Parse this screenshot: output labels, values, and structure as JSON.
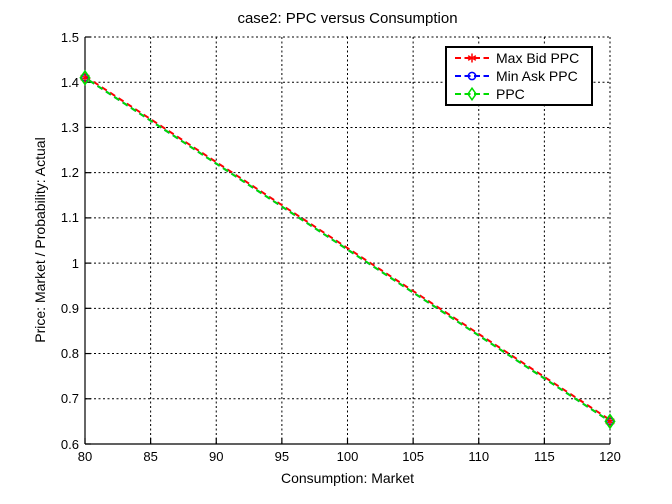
{
  "figure": {
    "background": "#ffffff"
  },
  "chart_data": {
    "type": "line",
    "title": "case2: PPC versus Consumption",
    "xlabel": "Consumption: Market",
    "ylabel": "Price: Market / Probability: Actual",
    "xlim": [
      80,
      120
    ],
    "ylim": [
      0.6,
      1.5
    ],
    "xticks": [
      80,
      85,
      90,
      95,
      100,
      105,
      110,
      115,
      120
    ],
    "xtick_labels": [
      "80",
      "85",
      "90",
      "95",
      "100",
      "105",
      "110",
      "115",
      "120"
    ],
    "yticks": [
      0.6,
      0.7,
      0.8,
      0.9,
      1.0,
      1.1,
      1.2,
      1.3,
      1.4,
      1.5
    ],
    "ytick_labels": [
      "0.6",
      "0.7",
      "0.8",
      "0.9",
      "1",
      "1.1",
      "1.2",
      "1.3",
      "1.4",
      "1.5"
    ],
    "grid": true,
    "grid_style": "dotted",
    "grid_color": "#000000",
    "axis_color": "#000000",
    "legend_position": "top-right",
    "x": [
      80,
      120
    ],
    "series": [
      {
        "name": "Max Bid PPC",
        "color": "#ff0000",
        "marker": "asterisk",
        "linestyle": "dashed",
        "values": [
          1.41,
          0.65
        ]
      },
      {
        "name": "Min Ask PPC",
        "color": "#0000ff",
        "marker": "circle",
        "linestyle": "dashed",
        "values": [
          1.41,
          0.65
        ]
      },
      {
        "name": "PPC",
        "color": "#00dc00",
        "marker": "diamond",
        "linestyle": "dashed",
        "values": [
          1.41,
          0.65
        ]
      }
    ]
  }
}
